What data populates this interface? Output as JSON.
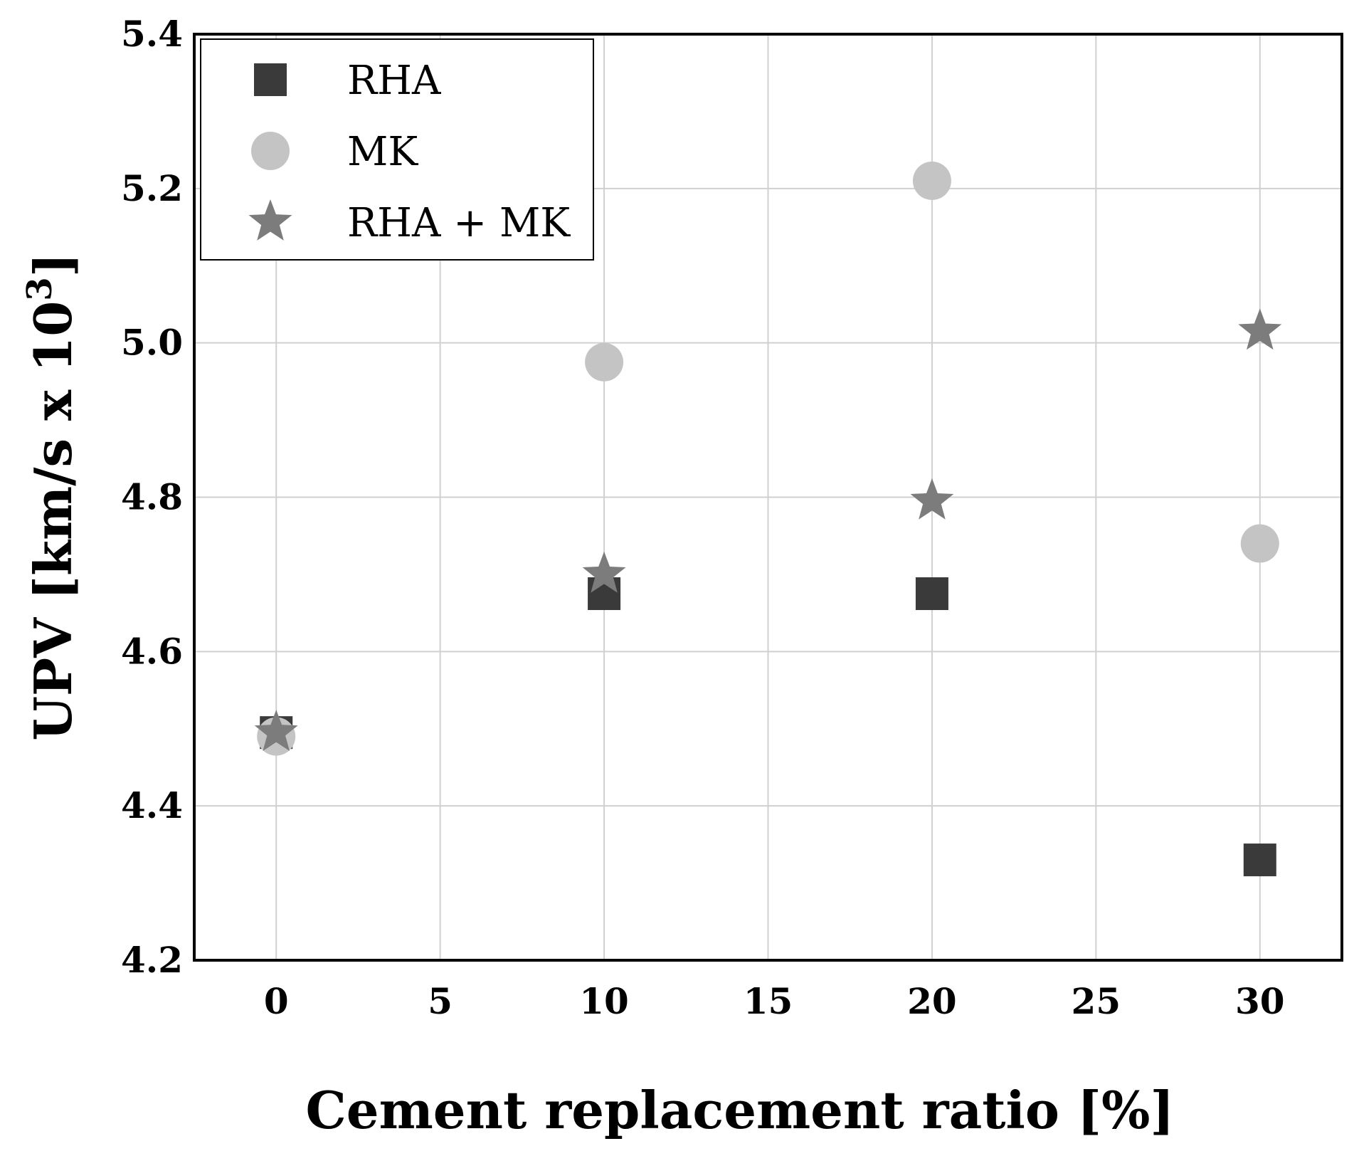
{
  "chart_data": {
    "type": "scatter",
    "title": "",
    "xlabel": "Cement replacement ratio [%]",
    "ylabel_main": "UPV [km/s x 10",
    "ylabel_sup": "3",
    "ylabel_end": "]",
    "xlim": [
      -2.5,
      32.5
    ],
    "ylim": [
      4.2,
      5.4
    ],
    "xticks": [
      0,
      5,
      10,
      15,
      20,
      25,
      30
    ],
    "xtick_labels": [
      "0",
      "5",
      "10",
      "15",
      "20",
      "25",
      "30"
    ],
    "yticks": [
      4.2,
      4.4,
      4.6,
      4.8,
      5.0,
      5.2,
      5.4
    ],
    "ytick_labels": [
      "4.2",
      "4.4",
      "4.6",
      "4.8",
      "5.0",
      "5.2",
      "5.4"
    ],
    "grid": true,
    "legend_position": "top-left",
    "series": [
      {
        "name": "RHA",
        "marker": "square",
        "color": "#3a3a3a",
        "x": [
          0,
          10,
          20,
          30
        ],
        "y": [
          4.495,
          4.675,
          4.675,
          4.33
        ]
      },
      {
        "name": "MK",
        "marker": "circle",
        "color": "#c4c4c4",
        "x": [
          0,
          10,
          20,
          30
        ],
        "y": [
          4.49,
          4.975,
          5.21,
          4.74
        ]
      },
      {
        "name": "RHA + MK",
        "marker": "star",
        "color": "#7c7c7c",
        "x": [
          0,
          10,
          20,
          30
        ],
        "y": [
          4.495,
          4.7,
          4.795,
          5.015
        ]
      }
    ]
  }
}
